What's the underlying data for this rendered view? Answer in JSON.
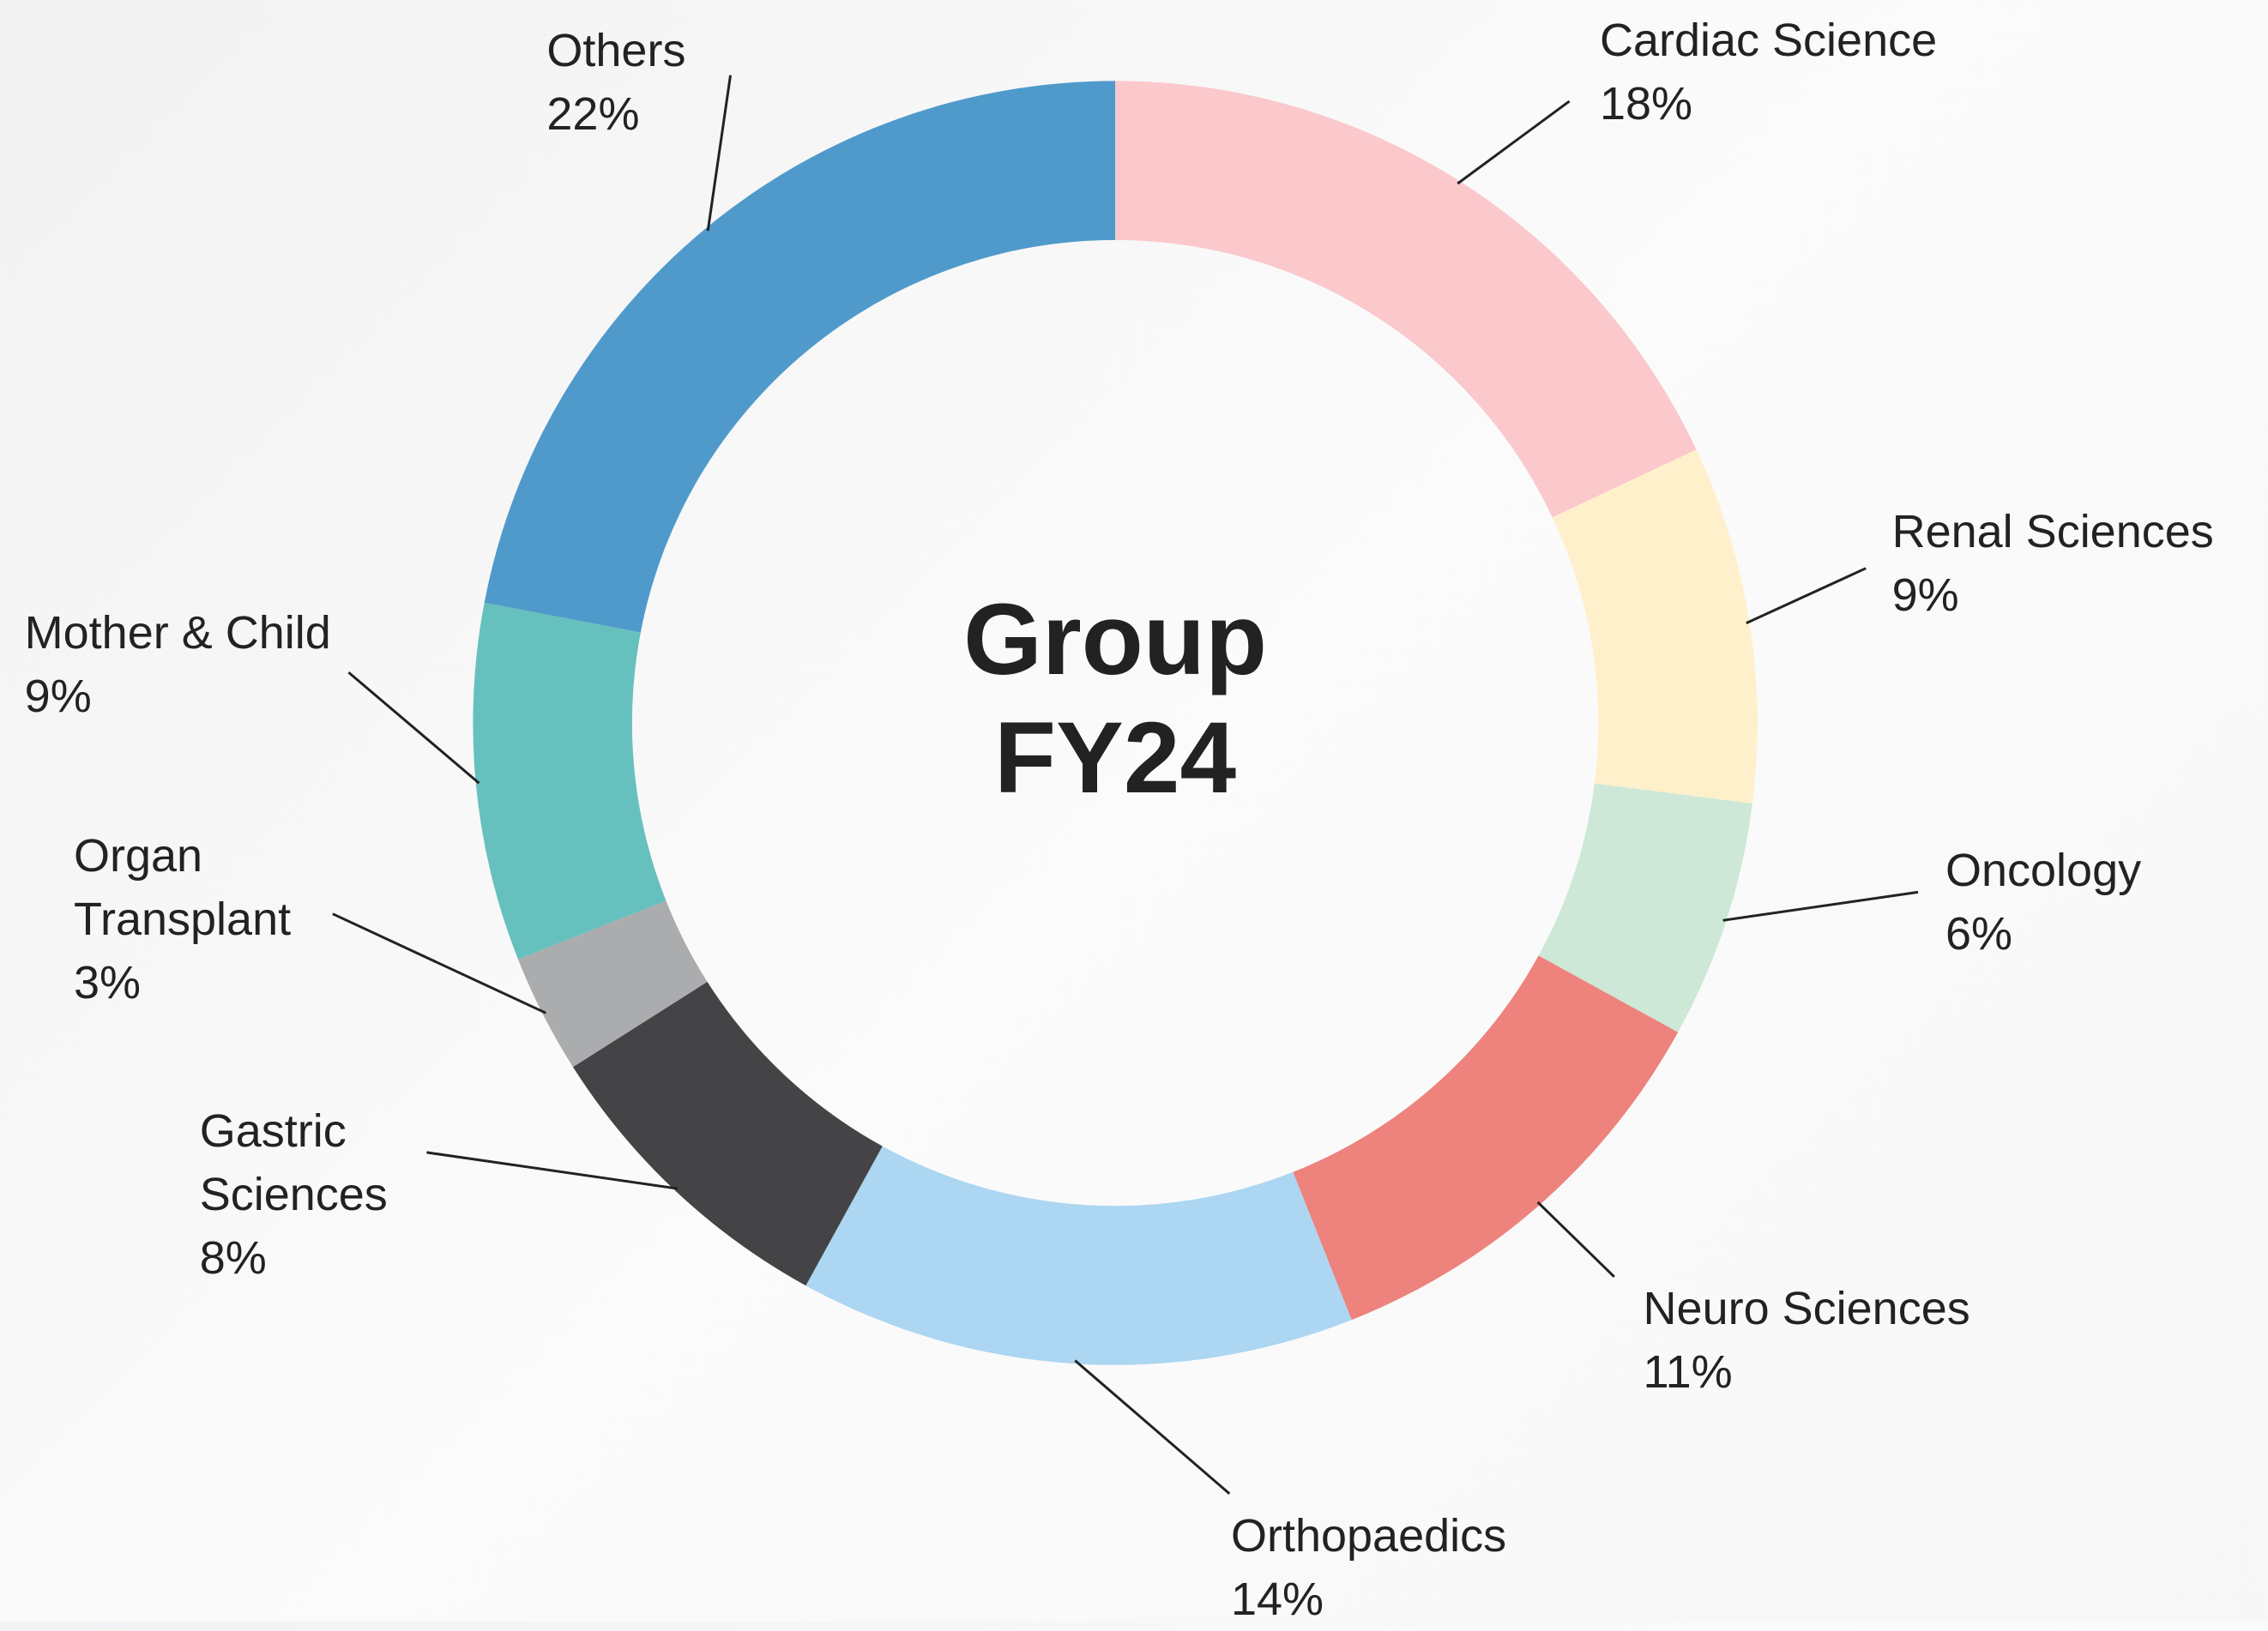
{
  "chart_data": {
    "type": "donut",
    "title": "Group FY24",
    "categories": [
      "Cardiac Science",
      "Renal Sciences",
      "Oncology",
      "Neuro Sciences",
      "Orthopaedics",
      "Gastric Sciences",
      "Organ Transplant",
      "Mother & Child",
      "Others"
    ],
    "values": [
      18,
      9,
      6,
      11,
      14,
      8,
      3,
      9,
      22
    ],
    "value_labels": [
      "18%",
      "9%",
      "6%",
      "11%",
      "14%",
      "8%",
      "3%",
      "9%",
      "22%"
    ],
    "colors": [
      "#fbc8cb",
      "#fff0cc",
      "#cde8d6",
      "#ee827c",
      "#acd6f2",
      "#444446",
      "#abacae",
      "#66c0be",
      "#4f9acb"
    ]
  }
}
